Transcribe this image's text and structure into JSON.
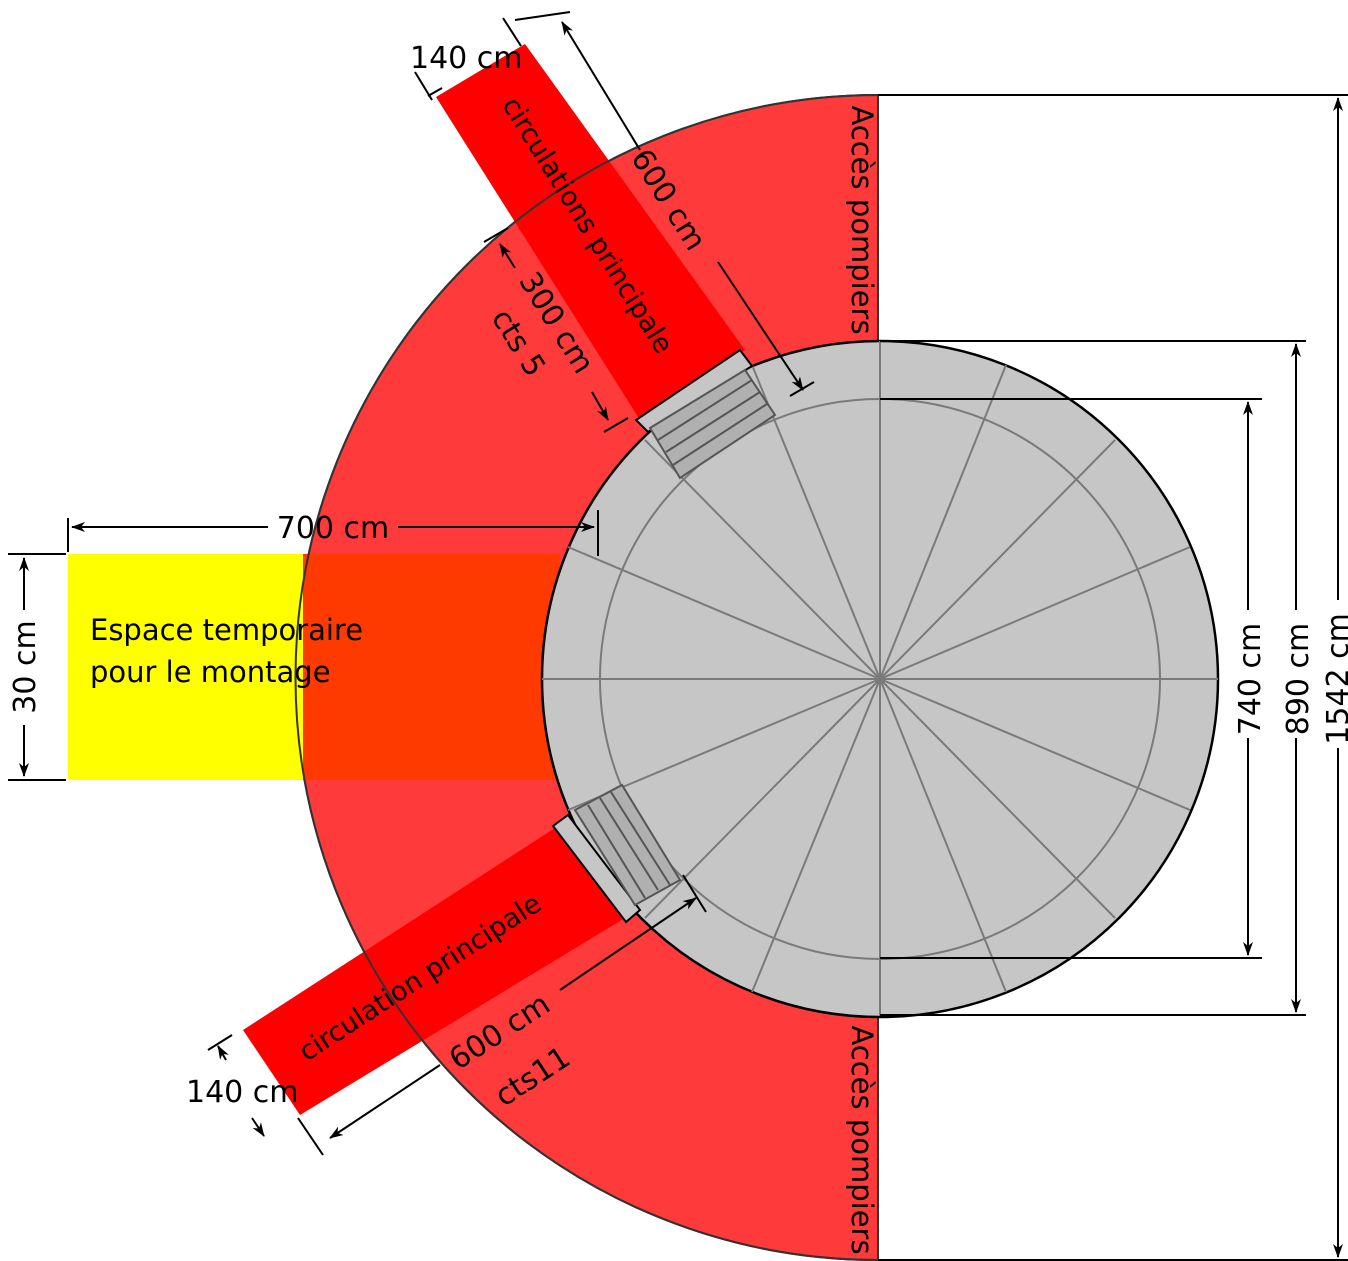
{
  "dimensions": {
    "top_arm_width": "140 cm",
    "top_arm_length": "600 cm",
    "top_arm_offset": "300 cm",
    "top_arm_offset_ref": "cts 5",
    "staging_depth": "700 cm",
    "staging_width": "30 cm",
    "bottom_arm_width": "140 cm",
    "bottom_arm_length": "600 cm",
    "bottom_arm_ref": "cts11",
    "inner_diameter": "740 cm",
    "dome_diameter": "890 cm",
    "total_diameter": "1542 cm"
  },
  "zones": {
    "top_circulation": "circulations principale",
    "bottom_circulation": "circulation principale",
    "fire_access_top": "Accès pompiers",
    "fire_access_bottom": "Accès pompiers",
    "staging_line1": "Espace temporaire",
    "staging_line2": "pour le montage"
  },
  "colors": {
    "safety_zone": "#ff3a3a",
    "circulation": "#ff0000",
    "staging": "#ffff00",
    "overlap": "#ff3a00",
    "dome": "#c6c6c6",
    "outline": "#000000"
  }
}
